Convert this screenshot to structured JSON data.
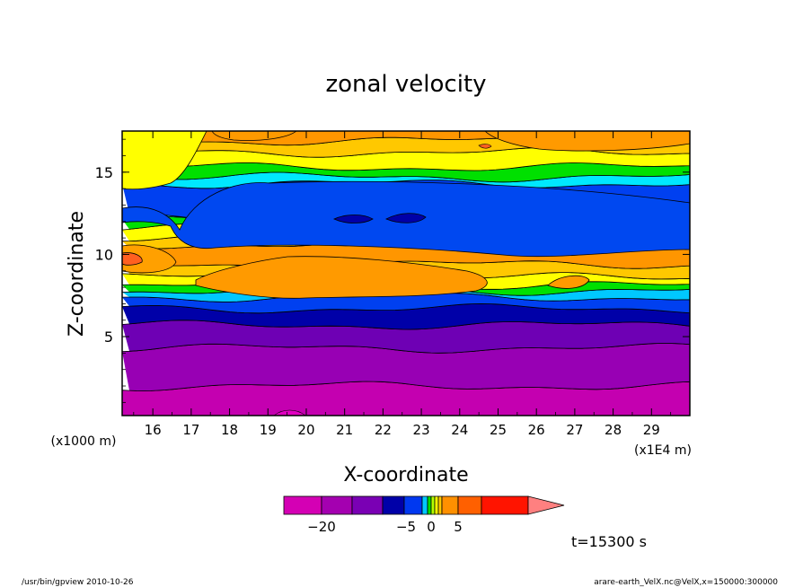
{
  "chart_data": {
    "type": "heatmap",
    "title": "zonal velocity",
    "xlabel": "X-coordinate",
    "ylabel": "Z-coordinate",
    "x_unit_note": "(x1E4 m)",
    "y_unit_note": "(x1000 m)",
    "x_ticks": [
      "16",
      "17",
      "18",
      "19",
      "20",
      "21",
      "22",
      "23",
      "24",
      "25",
      "26",
      "27",
      "28",
      "29"
    ],
    "y_ticks": [
      "5",
      "10",
      "15"
    ],
    "xlim": [
      15.2,
      30.0
    ],
    "ylim": [
      0.2,
      17.5
    ],
    "colorbar": {
      "tick_labels": [
        {
          "value": -20,
          "label": "−20"
        },
        {
          "value": -5,
          "label": "−5"
        },
        {
          "value": 0,
          "label": "0"
        },
        {
          "value": 5,
          "label": "5"
        }
      ],
      "colors": [
        "#d400b4",
        "#a400b0",
        "#7a00b4",
        "#0000a8",
        "#0038f0",
        "#00c8ff",
        "#00e000",
        "#b4ff00",
        "#ffff00",
        "#ffc800",
        "#ff9000",
        "#ff6000",
        "#ff1400",
        "#ff8080"
      ]
    },
    "bands": [
      {
        "z": 0.2,
        "color": "#c400b0"
      },
      {
        "z": 2.0,
        "color": "#9800b4"
      },
      {
        "z": 4.3,
        "color": "#6e00b4"
      },
      {
        "z": 5.7,
        "color": "#0000a8"
      },
      {
        "z": 6.7,
        "color": "#0040f0"
      },
      {
        "z": 7.4,
        "color": "#00c8ff"
      },
      {
        "z": 7.8,
        "color": "#00e000"
      },
      {
        "z": 8.1,
        "color": "#ffff00"
      },
      {
        "z": 8.6,
        "color": "#ffc800"
      },
      {
        "z": 9.4,
        "color": "#ff9600"
      },
      {
        "z": 10.6,
        "color": "#ffc800"
      },
      {
        "z": 11.1,
        "color": "#ffff00"
      },
      {
        "z": 11.6,
        "color": "#00e000"
      },
      {
        "z": 12.0,
        "color": "#00e8ff"
      },
      {
        "z": 12.3,
        "color": "#0040f0"
      },
      {
        "z": 14.3,
        "color": "#00e8ff"
      },
      {
        "z": 14.7,
        "color": "#00e000"
      },
      {
        "z": 15.3,
        "color": "#ffff00"
      },
      {
        "z": 16.2,
        "color": "#ffc800"
      },
      {
        "z": 16.9,
        "color": "#ff9600"
      }
    ],
    "annotation": "t=15300 s"
  },
  "footer": {
    "left": "/usr/bin/gpview   2010-10-26",
    "right": "arare-earth_VelX.nc@VelX,x=150000:300000"
  }
}
